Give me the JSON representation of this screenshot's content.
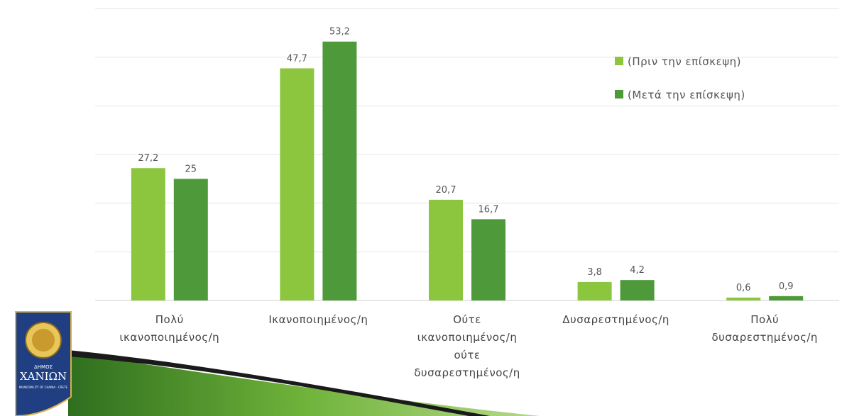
{
  "chart_data": {
    "type": "bar",
    "categories": [
      [
        "Πολύ",
        "ικανοποιημένος/η"
      ],
      [
        "Ικανοποιημένος/η"
      ],
      [
        "Ούτε",
        "ικανοποιημένος/η",
        "ούτε",
        "δυσαρεστημένος/η"
      ],
      [
        "Δυσαρεστημένος/η"
      ],
      [
        "Πολύ",
        "δυσαρεστημένος/η"
      ]
    ],
    "series": [
      {
        "name": "(Πριν την επίσκεψη)",
        "color": "#8cc63f",
        "values": [
          27.2,
          47.7,
          20.7,
          3.8,
          0.6
        ],
        "labels": [
          "27,2",
          "47,7",
          "20,7",
          "3,8",
          "0,6"
        ]
      },
      {
        "name": "(Μετά την επίσκεψη)",
        "color": "#4e9a3a",
        "values": [
          25,
          53.2,
          16.7,
          4.2,
          0.9
        ],
        "labels": [
          "25",
          "53,2",
          "16,7",
          "4,2",
          "0,9"
        ]
      }
    ],
    "ylim": [
      0,
      60
    ],
    "grid": true,
    "legend_position": "top-right"
  },
  "logo": {
    "text_top": "ΔΗΜΟΣ",
    "text_main": "ΧΑΝΙΩΝ",
    "text_bottom": "MUNICIPALITY OF CHANIA · CRETE"
  }
}
